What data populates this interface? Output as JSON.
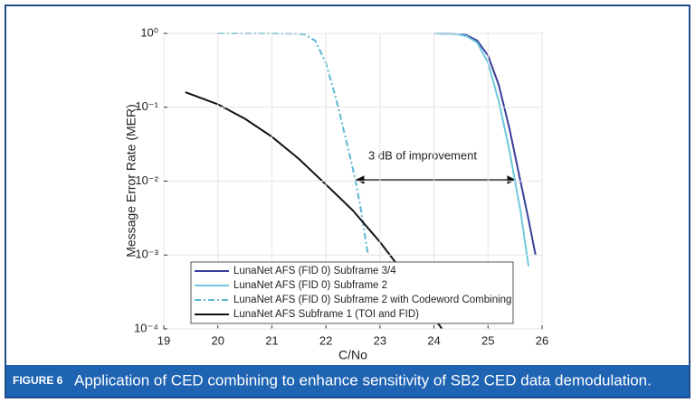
{
  "figure_label": "FIGURE 6",
  "caption": "Application of CED combining to enhance sensitivity of SB2 CED data demodulation.",
  "chart_data": {
    "type": "line",
    "xlabel": "C/No",
    "ylabel": "Message Error Rate (MER)",
    "annotation": "3 dB of improvement",
    "xlim": [
      19,
      26
    ],
    "xticks": [
      19,
      20,
      21,
      22,
      23,
      24,
      25,
      26
    ],
    "ylim": [
      0.0001,
      1
    ],
    "log_y": true,
    "grid": true,
    "legend": "lower-center",
    "yticks": [
      {
        "value": 1,
        "label": "10⁰"
      },
      {
        "value": 0.1,
        "label": "10⁻¹"
      },
      {
        "value": 0.01,
        "label": "10⁻²"
      },
      {
        "value": 0.001,
        "label": "10⁻³"
      },
      {
        "value": 0.0001,
        "label": "10⁻⁴"
      }
    ],
    "series": [
      {
        "name": "LunaNet AFS (FID 0) Subframe 3/4",
        "color": "#3b3f9c",
        "style": "solid",
        "x": [
          24,
          24.4,
          24.6,
          24.8,
          25.0,
          25.2,
          25.4,
          25.6,
          25.75,
          25.88
        ],
        "values": [
          1,
          0.99,
          0.95,
          0.8,
          0.5,
          0.2,
          0.05,
          0.01,
          0.003,
          0.001
        ]
      },
      {
        "name": "LunaNet AFS (FID 0) Subframe 2",
        "color": "#6fc8dd",
        "style": "solid",
        "x": [
          24,
          24.4,
          24.6,
          24.8,
          25.0,
          25.2,
          25.4,
          25.5,
          25.6,
          25.75
        ],
        "values": [
          1,
          0.98,
          0.92,
          0.75,
          0.4,
          0.12,
          0.025,
          0.01,
          0.004,
          0.0007
        ]
      },
      {
        "name": "LunaNet AFS (FID 0) Subframe 2 with Codeword Combining",
        "color": "#5bb8d0",
        "style": "dashdot",
        "x": [
          20,
          21,
          21.5,
          21.6,
          21.8,
          22.0,
          22.2,
          22.4,
          22.55,
          22.65,
          22.78
        ],
        "values": [
          1,
          1,
          0.99,
          0.97,
          0.8,
          0.4,
          0.12,
          0.03,
          0.01,
          0.004,
          0.001
        ]
      },
      {
        "name": "LunaNet AFS Subframe 1 (TOI and FID)",
        "color": "#111111",
        "style": "solid",
        "x": [
          19.4,
          20,
          20.5,
          21,
          21.5,
          22,
          22.5,
          23,
          23.5,
          24,
          24.15
        ],
        "values": [
          0.16,
          0.11,
          0.07,
          0.04,
          0.02,
          0.009,
          0.004,
          0.0015,
          0.0005,
          0.00014,
          0.0001
        ]
      }
    ]
  }
}
